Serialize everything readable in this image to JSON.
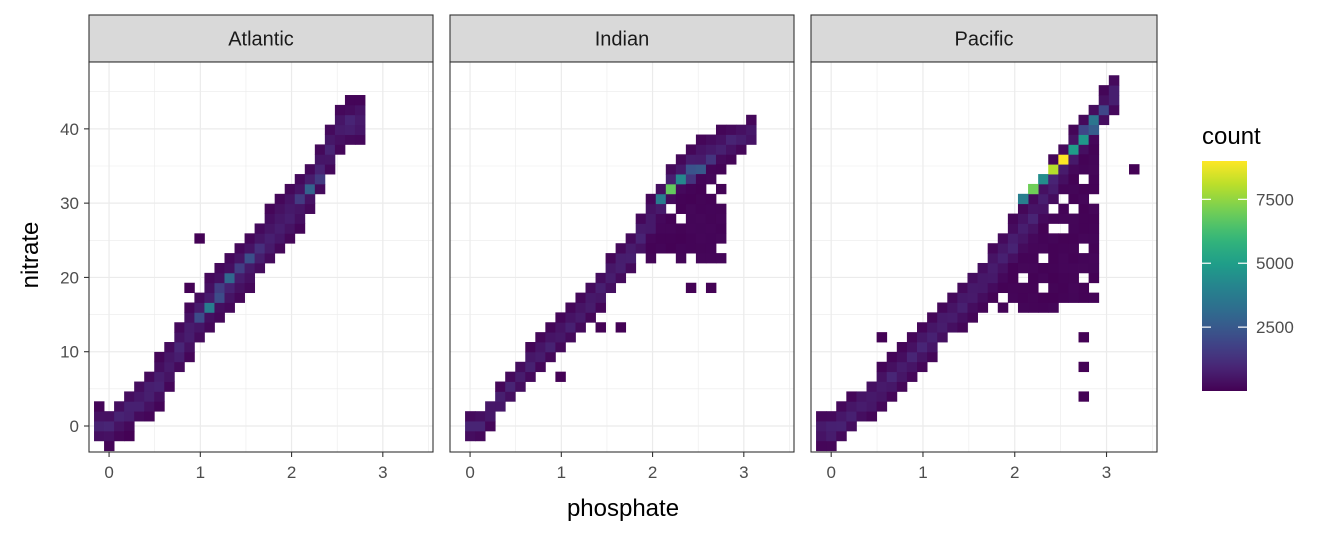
{
  "chart_data": {
    "type": "heatmap",
    "subtype": "binned-2d-facetted",
    "xlabel": "phosphate",
    "ylabel": "nitrate",
    "xlim": [
      -0.22,
      3.55
    ],
    "ylim": [
      -3.5,
      49
    ],
    "x_ticks": [
      0,
      1,
      2,
      3
    ],
    "y_ticks": [
      0,
      10,
      20,
      30,
      40
    ],
    "grid": true,
    "legend": {
      "title": "count",
      "placement": "right",
      "ticks": [
        2500,
        5000,
        7500
      ],
      "range": [
        1,
        9000
      ],
      "colormap": "viridis"
    },
    "bin_width": {
      "x": 0.11,
      "y": 1.33
    },
    "panels": [
      {
        "name": "Atlantic",
        "ridge": [
          [
            0,
            0
          ],
          [
            0.5,
            5
          ],
          [
            1.05,
            16
          ],
          [
            1.5,
            21.5
          ],
          [
            2.2,
            32
          ],
          [
            2.55,
            40.5
          ],
          [
            2.75,
            41
          ]
        ],
        "halfwidth": [
          [
            0,
            2.5
          ],
          [
            1.0,
            4
          ],
          [
            2.0,
            4
          ],
          [
            2.75,
            3
          ]
        ],
        "peak": {
          "x": 1.05,
          "y": 16.5,
          "count": 3800
        },
        "secondary_peaks": [
          {
            "x": 1.28,
            "y": 19.5,
            "count": 3000
          },
          {
            "x": 1.55,
            "y": 22.5,
            "count": 2200
          },
          {
            "x": 2.2,
            "y": 32.5,
            "count": 2800
          }
        ],
        "isolated_points": [
          [
            0.85,
            19
          ],
          [
            0.85,
            16
          ],
          [
            0.25,
            -0.7
          ],
          [
            0.95,
            25
          ]
        ]
      },
      {
        "name": "Indian",
        "ridge": [
          [
            0.1,
            0
          ],
          [
            0.7,
            9
          ],
          [
            1.2,
            15
          ],
          [
            1.8,
            24
          ],
          [
            2.2,
            32.5
          ],
          [
            2.5,
            36
          ],
          [
            3.05,
            39.5
          ]
        ],
        "halfwidth": [
          [
            0.1,
            2
          ],
          [
            1.2,
            2.5
          ],
          [
            2.0,
            3
          ],
          [
            3.05,
            2
          ]
        ],
        "fan": {
          "x_range": [
            1.9,
            2.8
          ],
          "y_range": [
            20,
            28
          ]
        },
        "peak": {
          "x": 2.25,
          "y": 32,
          "count": 6800
        },
        "secondary_peaks": [
          {
            "x": 2.35,
            "y": 33.5,
            "count": 4200
          },
          {
            "x": 2.5,
            "y": 35,
            "count": 2500
          }
        ],
        "isolated_points": [
          [
            1.4,
            13
          ],
          [
            1.65,
            13
          ],
          [
            0.95,
            7
          ],
          [
            2.4,
            18
          ],
          [
            2.6,
            18
          ]
        ]
      },
      {
        "name": "Pacific",
        "ridge": [
          [
            0,
            -0.5
          ],
          [
            0.5,
            4.5
          ],
          [
            1.1,
            12
          ],
          [
            1.7,
            20
          ],
          [
            2.2,
            28
          ],
          [
            2.55,
            35.5
          ],
          [
            3.1,
            45
          ]
        ],
        "halfwidth": [
          [
            0,
            2.5
          ],
          [
            1.0,
            3
          ],
          [
            2.0,
            3.5
          ],
          [
            3.1,
            2.5
          ]
        ],
        "fan": {
          "x_range": [
            1.4,
            2.9
          ],
          "y_range": [
            13,
            27
          ]
        },
        "peak": {
          "x": 2.55,
          "y": 36.5,
          "count": 9000
        },
        "secondary_peaks": [
          {
            "x": 2.45,
            "y": 35,
            "count": 8000
          },
          {
            "x": 2.2,
            "y": 31.5,
            "count": 7000
          },
          {
            "x": 2.7,
            "y": 38.5,
            "count": 4800
          },
          {
            "x": 2.85,
            "y": 41,
            "count": 3500
          }
        ],
        "isolated_points": [
          [
            2.8,
            8.5
          ],
          [
            2.8,
            4.5
          ],
          [
            2.8,
            11.5
          ],
          [
            3.35,
            35
          ],
          [
            -0.05,
            0.5
          ],
          [
            0.5,
            11.5
          ]
        ]
      }
    ]
  }
}
